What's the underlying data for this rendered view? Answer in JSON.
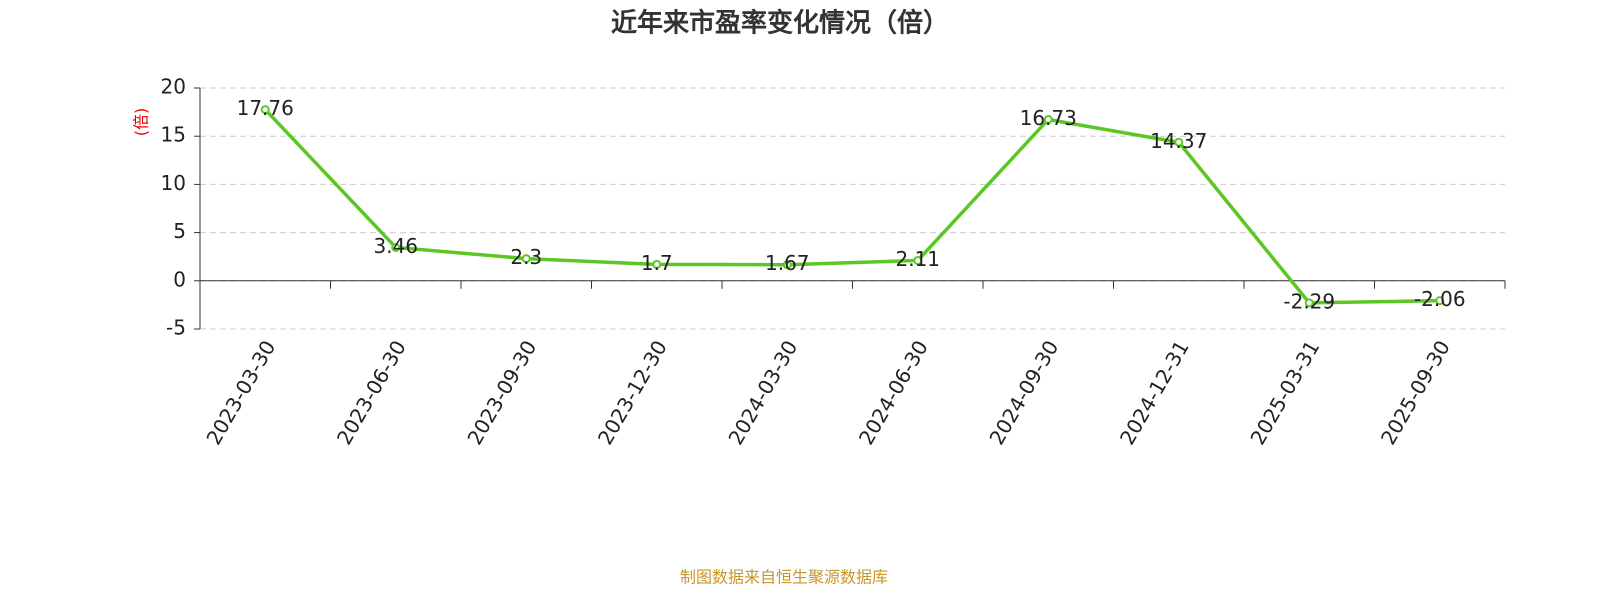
{
  "chart_data": {
    "type": "line",
    "title": "近年来市盈率变化情况（倍）",
    "y_label": "(倍)",
    "categories": [
      "2023-03-30",
      "2023-06-30",
      "2023-09-30",
      "2023-12-30",
      "2024-03-30",
      "2024-06-30",
      "2024-09-30",
      "2024-12-31",
      "2025-03-31",
      "2025-09-30"
    ],
    "values": [
      17.76,
      3.46,
      2.3,
      1.7,
      1.67,
      2.11,
      16.73,
      14.37,
      -2.29,
      -2.06
    ],
    "color": "#5cc723",
    "ylim": [
      -5,
      20
    ],
    "yticks": [
      -5,
      0,
      5,
      10,
      15,
      20
    ],
    "grid": true,
    "source": "制图数据来自恒生聚源数据库"
  }
}
